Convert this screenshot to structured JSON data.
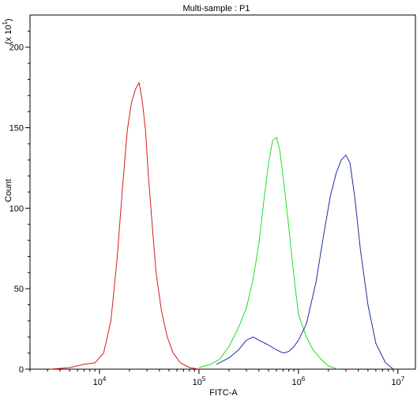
{
  "chart_data": {
    "type": "line",
    "title": "Multi-sample : P1",
    "xlabel": "FITC-A",
    "ylabel": "Count",
    "y_scale_note": "(x 10^1)",
    "x_scale": "log",
    "xlim": [
      2000,
      15000000
    ],
    "ylim": [
      0,
      220
    ],
    "grid": false,
    "legend": "none",
    "x_ticks": [
      {
        "value": 10000,
        "base": "10",
        "exp": "4"
      },
      {
        "value": 100000,
        "base": "10",
        "exp": "5"
      },
      {
        "value": 1000000,
        "base": "10",
        "exp": "6"
      },
      {
        "value": 10000000,
        "base": "10",
        "exp": "7"
      }
    ],
    "y_ticks": [
      0,
      50,
      100,
      150,
      200
    ],
    "series": [
      {
        "color": "#d41c1c",
        "x": [
          3200,
          5000,
          7000,
          9000,
          11000,
          13000,
          15000,
          17000,
          19000,
          21000,
          23000,
          25000,
          27000,
          29000,
          31000,
          34000,
          37000,
          42000,
          48000,
          55000,
          65000,
          80000,
          100000
        ],
        "y": [
          0,
          1,
          3,
          4,
          10,
          30,
          68,
          112,
          148,
          166,
          174,
          178,
          166,
          148,
          120,
          88,
          60,
          36,
          20,
          10,
          4,
          1,
          0
        ]
      },
      {
        "color": "#22dd22",
        "x": [
          100000,
          130000,
          160000,
          200000,
          250000,
          300000,
          350000,
          400000,
          450000,
          500000,
          550000,
          600000,
          650000,
          700000,
          800000,
          900000,
          1000000,
          1200000,
          1400000,
          1700000,
          2000000,
          2500000
        ],
        "y": [
          1,
          3,
          6,
          14,
          26,
          38,
          56,
          78,
          105,
          128,
          142,
          144,
          136,
          120,
          88,
          58,
          34,
          20,
          12,
          6,
          2,
          0
        ]
      },
      {
        "color": "#1c2ea0",
        "x": [
          150000,
          200000,
          250000,
          300000,
          350000,
          400000,
          500000,
          600000,
          700000,
          800000,
          900000,
          1000000,
          1200000,
          1500000,
          1800000,
          2100000,
          2400000,
          2700000,
          3000000,
          3300000,
          3700000,
          4200000,
          5000000,
          6000000,
          7500000,
          9000000
        ],
        "y": [
          3,
          7,
          12,
          18,
          20,
          18,
          15,
          12,
          10,
          11,
          14,
          18,
          28,
          54,
          84,
          108,
          122,
          130,
          133,
          128,
          106,
          74,
          40,
          16,
          4,
          0
        ]
      }
    ]
  }
}
